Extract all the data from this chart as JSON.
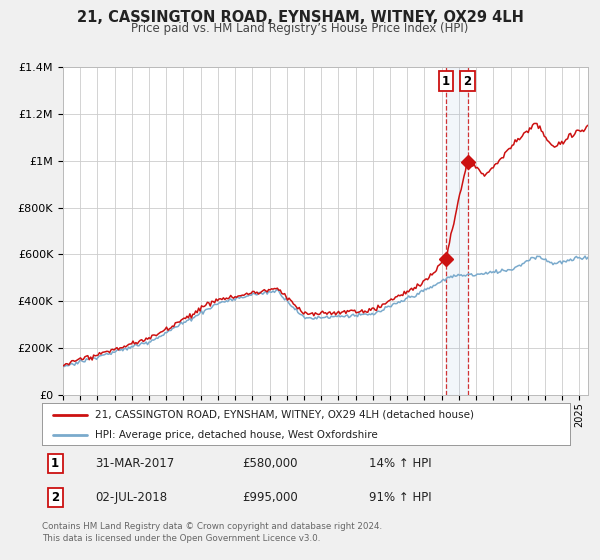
{
  "title": "21, CASSINGTON ROAD, EYNSHAM, WITNEY, OX29 4LH",
  "subtitle": "Price paid vs. HM Land Registry’s House Price Index (HPI)",
  "legend_line1": "21, CASSINGTON ROAD, EYNSHAM, WITNEY, OX29 4LH (detached house)",
  "legend_line2": "HPI: Average price, detached house, West Oxfordshire",
  "annotation1_date": "31-MAR-2017",
  "annotation1_price": "£580,000",
  "annotation1_hpi": "14% ↑ HPI",
  "annotation1_year": 2017.25,
  "annotation1_value": 580000,
  "annotation2_date": "02-JUL-2018",
  "annotation2_price": "£995,000",
  "annotation2_hpi": "91% ↑ HPI",
  "annotation2_year": 2018.5,
  "annotation2_value": 995000,
  "red_color": "#cc1111",
  "blue_color": "#7aaacc",
  "background_color": "#f0f0f0",
  "plot_bg_color": "#ffffff",
  "grid_color": "#cccccc",
  "footer_text": "Contains HM Land Registry data © Crown copyright and database right 2024.\nThis data is licensed under the Open Government Licence v3.0.",
  "ylim": [
    0,
    1400000
  ],
  "xlim_start": 1995,
  "xlim_end": 2025.5
}
